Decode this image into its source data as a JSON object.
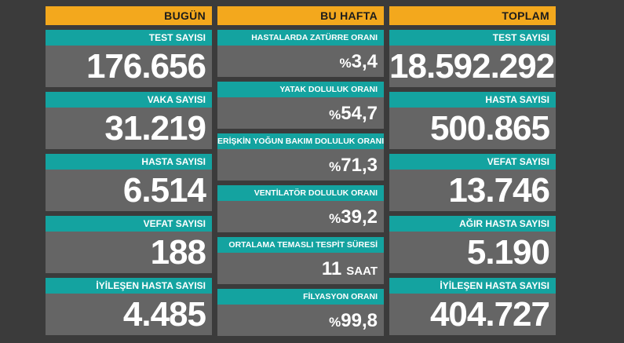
{
  "today": {
    "header": "BUGÜN",
    "items": [
      {
        "label": "TEST SAYISI",
        "value": "176.656"
      },
      {
        "label": "VAKA SAYISI",
        "value": "31.219"
      },
      {
        "label": "HASTA SAYISI",
        "value": "6.514"
      },
      {
        "label": "VEFAT SAYISI",
        "value": "188"
      },
      {
        "label": "İYİLEŞEN HASTA SAYISI",
        "value": "4.485"
      }
    ]
  },
  "week": {
    "header": "BU HAFTA",
    "items": [
      {
        "label": "HASTALARDA ZATÜRRE ORANI",
        "prefix": "%",
        "value": "3,4"
      },
      {
        "label": "YATAK DOLULUK ORANI",
        "prefix": "%",
        "value": "54,7"
      },
      {
        "label": "ERİŞKİN YOĞUN BAKIM DOLULUK ORANI",
        "prefix": "%",
        "value": "71,3"
      },
      {
        "label": "VENTİLATÖR DOLULUK ORANI",
        "prefix": "%",
        "value": "39,2"
      },
      {
        "label": "ORTALAMA TEMASLI TESPİT SÜRESİ",
        "value": "11",
        "unit": "SAAT"
      },
      {
        "label": "FİLYASYON ORANI",
        "prefix": "%",
        "value": "99,8"
      }
    ]
  },
  "total": {
    "header": "TOPLAM",
    "items": [
      {
        "label": "TEST SAYISI",
        "value": "18.592.292"
      },
      {
        "label": "HASTA SAYISI",
        "value": "500.865"
      },
      {
        "label": "VEFAT SAYISI",
        "value": "13.746"
      },
      {
        "label": "AĞIR HASTA SAYISI",
        "value": "5.190"
      },
      {
        "label": "İYİLEŞEN HASTA SAYISI",
        "value": "404.727"
      }
    ]
  },
  "colors": {
    "background": "#3b3b3b",
    "header": "#f3a81d",
    "label": "#14a3a0",
    "value": "#656565"
  }
}
